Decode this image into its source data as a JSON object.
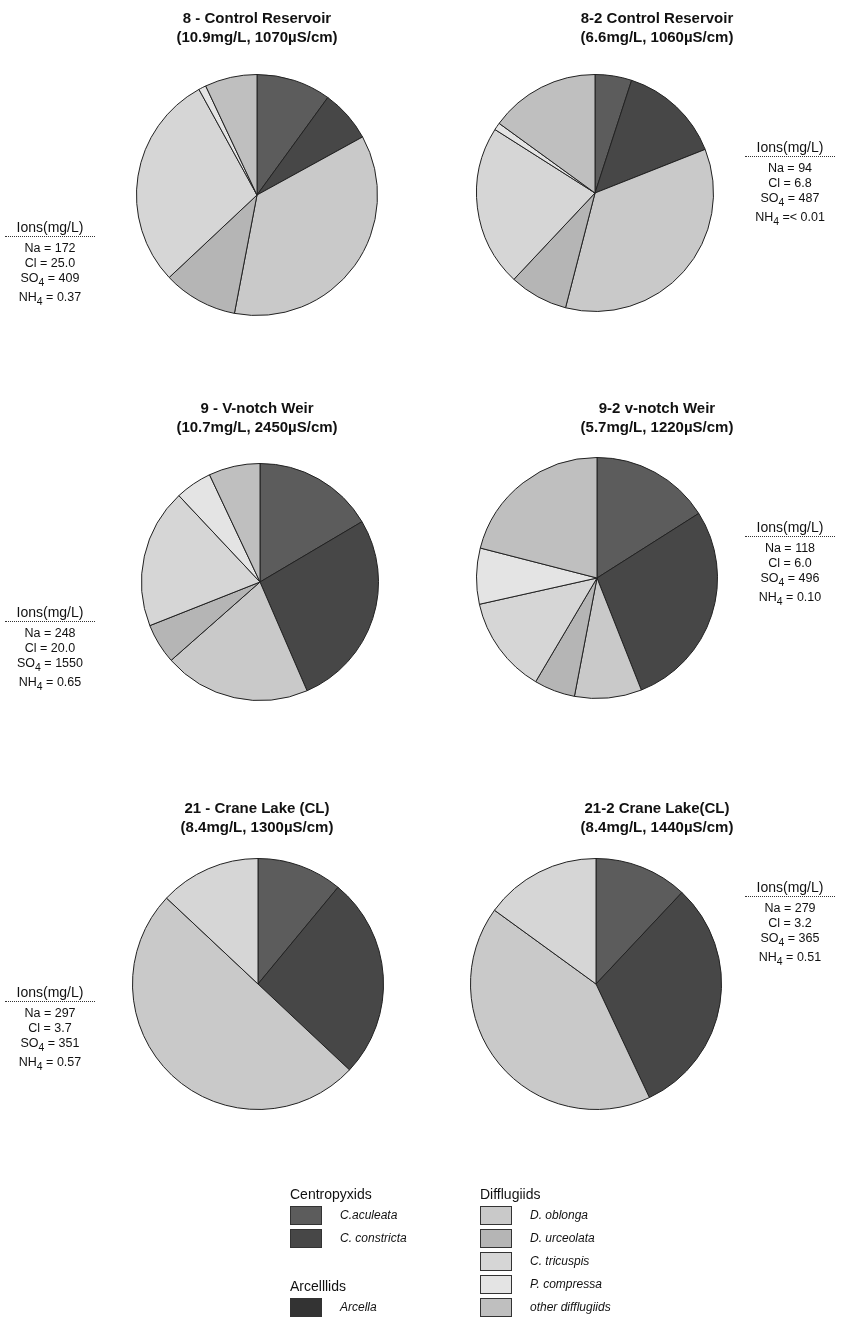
{
  "chart_data": [
    {
      "type": "pie",
      "title": "8 - Control Reservoir",
      "subtitle": "(10.9mg/L, 1070µS/cm)",
      "categories": [
        null,
        null,
        null,
        null,
        null,
        null,
        null,
        null
      ],
      "values": [
        10,
        7,
        0,
        36,
        10,
        29,
        1,
        7
      ],
      "colors": [
        "#5c5c5c",
        "#474747",
        "#333333",
        "#c9c9c9",
        "#b5b5b5",
        "#d6d6d6",
        "#e4e4e4",
        "#bfbfbf"
      ],
      "annotations": [
        "Ions(mg/L)",
        "Na = 172",
        "Cl = 25.0",
        "SO$_{4}$ = 409",
        "NH$_{4}$ = 0.37"
      ]
    },
    {
      "type": "pie",
      "title": "8-2 Control Reservoir",
      "subtitle": "(6.6mg/L, 1060µS/cm)",
      "categories": [
        null,
        null,
        null,
        null,
        null,
        null,
        null,
        null
      ],
      "values": [
        5,
        14,
        0,
        35,
        8,
        22,
        1,
        15
      ],
      "colors": [
        "#5c5c5c",
        "#474747",
        "#333333",
        "#c9c9c9",
        "#b5b5b5",
        "#d6d6d6",
        "#e4e4e4",
        "#bfbfbf"
      ],
      "annotations": [
        "Ions(mg/L)",
        "Na = 94",
        "Cl = 6.8",
        "SO$_{4}$ = 487",
        "NH$_{4}$ =< 0.01"
      ]
    },
    {
      "type": "pie",
      "title": "9 - V-notch Weir",
      "subtitle": "(10.7mg/L, 2450µS/cm)",
      "categories": [
        null,
        null,
        null,
        null,
        null,
        null,
        null,
        null
      ],
      "values": [
        16.5,
        27,
        0,
        20,
        5.5,
        19,
        5,
        7
      ],
      "colors": [
        "#5c5c5c",
        "#474747",
        "#333333",
        "#c9c9c9",
        "#b5b5b5",
        "#d6d6d6",
        "#e4e4e4",
        "#bfbfbf"
      ],
      "annotations": [
        "Ions(mg/L)",
        "Na = 248",
        "Cl = 20.0",
        "SO$_{4}$ = 1550",
        "NH$_{4}$ = 0.65"
      ]
    },
    {
      "type": "pie",
      "title": "9-2 v-notch Weir",
      "subtitle": "(5.7mg/L, 1220µS/cm)",
      "categories": [
        null,
        null,
        null,
        null,
        null,
        null,
        null,
        null
      ],
      "values": [
        16,
        28,
        0,
        9,
        5.5,
        13,
        7.5,
        21
      ],
      "colors": [
        "#5c5c5c",
        "#474747",
        "#333333",
        "#c9c9c9",
        "#b5b5b5",
        "#d6d6d6",
        "#e4e4e4",
        "#bfbfbf"
      ],
      "annotations": [
        "Ions(mg/L)",
        "Na = 118",
        "Cl = 6.0",
        "SO$_{4}$ = 496",
        "NH$_{4}$ = 0.10"
      ]
    },
    {
      "type": "pie",
      "title": "21 - Crane Lake (CL)",
      "subtitle": "(8.4mg/L, 1300µS/cm)",
      "categories": [
        null,
        null,
        null,
        null,
        null,
        null,
        null,
        null
      ],
      "values": [
        11,
        26,
        0,
        50,
        0,
        13,
        0,
        0
      ],
      "colors": [
        "#5c5c5c",
        "#474747",
        "#333333",
        "#c9c9c9",
        "#b5b5b5",
        "#d6d6d6",
        "#e4e4e4",
        "#bfbfbf"
      ],
      "annotations": [
        "Ions(mg/L)",
        "Na = 297",
        "Cl = 3.7",
        "SO$_{4}$ = 351",
        "NH$_{4}$ = 0.57"
      ]
    },
    {
      "type": "pie",
      "title": "21-2 Crane Lake(CL)",
      "subtitle": "(8.4mg/L, 1440µS/cm)",
      "categories": [
        "C.aculeata",
        "C. constricta",
        "Arcella",
        "D. oblonga",
        "D. urceolata",
        "C. tricuspis",
        "P. compressa",
        "other difflugiids"
      ],
      "values": [
        12,
        31,
        0,
        42,
        0,
        15,
        0,
        0
      ],
      "colors": [
        "#5c5c5c",
        "#474747",
        "#333333",
        "#c9c9c9",
        "#b5b5b5",
        "#d6d6d6",
        "#e4e4e4",
        "#bfbfbf"
      ],
      "annotations": [
        "Ions(mg/L)",
        "Na = 279",
        "Cl = 3.2",
        "SO$_{4}$ = 365",
        "NH$_{4}$ = 0.51",
        "Centropyxids",
        "Difflugiids",
        "Arcelllids"
      ],
      "legend": "bottom"
    }
  ]
}
